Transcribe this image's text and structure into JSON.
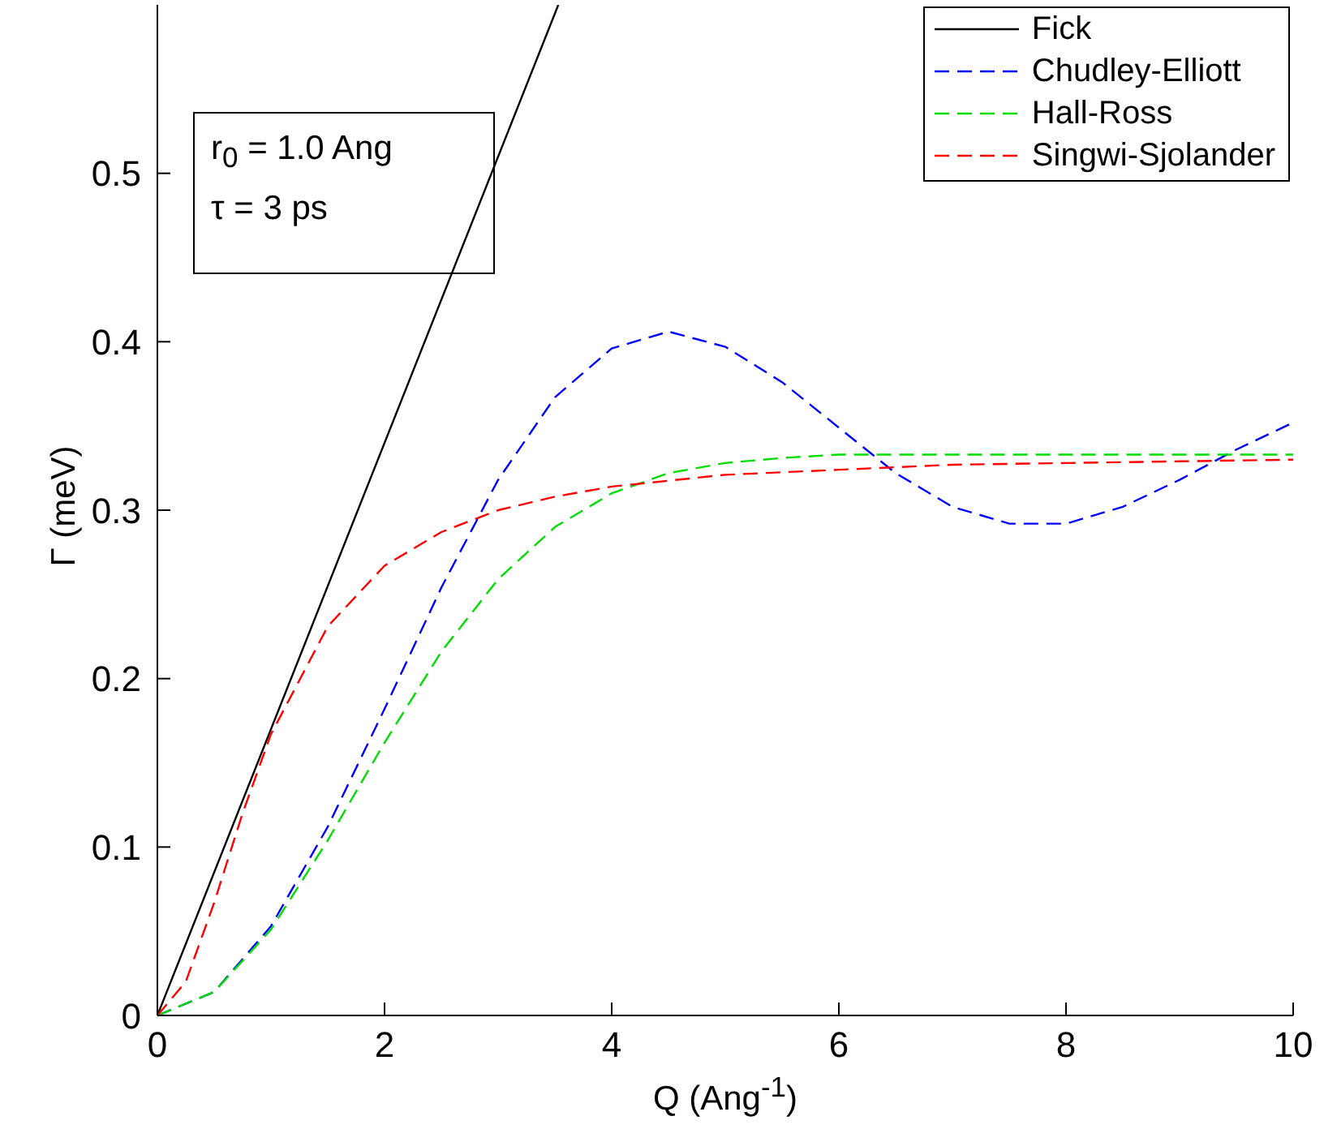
{
  "chart_data": {
    "type": "line",
    "xlabel": "Q (Ang$^{-1}$)",
    "ylabel": "Γ (meV)",
    "xlim": [
      0,
      10
    ],
    "xticks": [
      0,
      2,
      4,
      6,
      8,
      10
    ],
    "ylim": [
      0,
      0.6
    ],
    "yticks": [
      0,
      0.1,
      0.2,
      0.3,
      0.4,
      0.5
    ],
    "grid": false,
    "legend": "top right",
    "marker": "none",
    "annotations": [
      "r$_{0}$ = 1.0 Ang",
      "τ = 3 ps"
    ],
    "series": [
      {
        "name": "Fick",
        "color": "#000000",
        "line_style": "solid",
        "x": [
          0,
          3.53
        ],
        "values": [
          0,
          0.6
        ]
      },
      {
        "name": "Chudley-Elliott",
        "color": "#0000ff",
        "line_style": "dashed",
        "x": [
          0,
          0.5,
          1,
          1.5,
          2,
          2.5,
          3,
          3.5,
          4,
          4.5,
          5,
          5.5,
          6,
          6.5,
          7,
          7.5,
          8,
          8.5,
          9,
          9.5,
          10
        ],
        "values": [
          0,
          0.014,
          0.053,
          0.112,
          0.182,
          0.254,
          0.318,
          0.367,
          0.396,
          0.406,
          0.397,
          0.376,
          0.349,
          0.322,
          0.302,
          0.292,
          0.292,
          0.302,
          0.318,
          0.336,
          0.352
        ]
      },
      {
        "name": "Hall-Ross",
        "color": "#00dd00",
        "line_style": "dashed",
        "x": [
          0,
          0.5,
          1,
          1.5,
          2,
          2.5,
          3,
          3.5,
          4,
          4.5,
          5,
          5.5,
          6,
          7,
          8,
          9,
          10
        ],
        "values": [
          0,
          0.014,
          0.051,
          0.104,
          0.162,
          0.216,
          0.259,
          0.29,
          0.31,
          0.322,
          0.328,
          0.331,
          0.333,
          0.333,
          0.333,
          0.333,
          0.333
        ]
      },
      {
        "name": "Singwi-Sjolander",
        "color": "#ff0000",
        "line_style": "dashed",
        "x": [
          0,
          0.25,
          0.5,
          0.75,
          1,
          1.5,
          2,
          2.5,
          3,
          3.5,
          4,
          5,
          6,
          7,
          8,
          9,
          10
        ],
        "values": [
          0,
          0.02,
          0.067,
          0.12,
          0.167,
          0.231,
          0.267,
          0.287,
          0.3,
          0.308,
          0.314,
          0.321,
          0.324,
          0.327,
          0.328,
          0.329,
          0.33
        ]
      }
    ]
  }
}
